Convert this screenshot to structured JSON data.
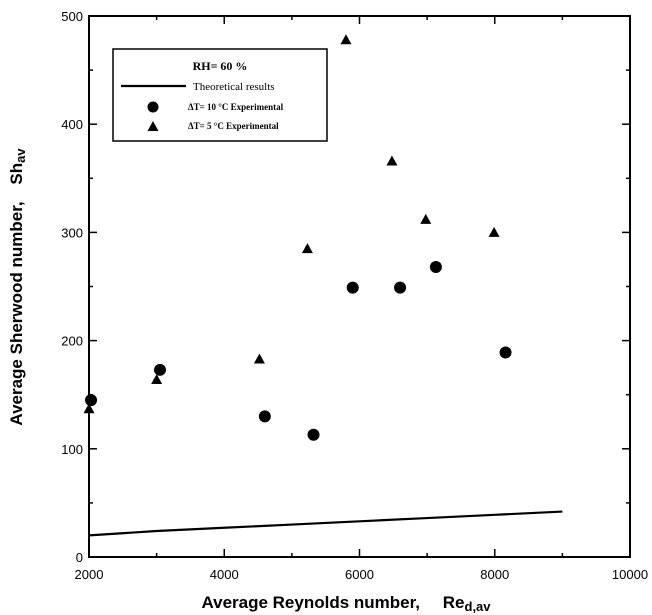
{
  "chart_data": {
    "type": "scatter",
    "xlabel": "Average Reynolds number,",
    "xlabel_symbol": "Re",
    "xlabel_sub": "d,av",
    "ylabel": "Average Sherwood number,",
    "ylabel_symbol": "Sh",
    "ylabel_sub": "av",
    "xlim": [
      2000,
      10000
    ],
    "ylim": [
      0,
      500
    ],
    "x_ticks": [
      2000,
      4000,
      6000,
      8000,
      10000
    ],
    "y_ticks": [
      0,
      100,
      200,
      300,
      400,
      500
    ],
    "grid": false,
    "legend_position": "top-left",
    "legend_title": "RH= 60 %",
    "series": [
      {
        "name": "Theoretical results",
        "kind": "line",
        "x": [
          2000,
          3000,
          4000,
          5000,
          6000,
          7000,
          8000,
          9000
        ],
        "y": [
          20,
          24,
          27,
          30,
          33,
          36,
          39,
          42
        ]
      },
      {
        "name": "ΔT= 10 °C Experimental",
        "kind": "marker",
        "marker": "circle",
        "x": [
          2030,
          3050,
          4600,
          5320,
          5900,
          6600,
          7130,
          8160
        ],
        "y": [
          145,
          173,
          130,
          113,
          249,
          249,
          268,
          189
        ]
      },
      {
        "name": "ΔT= 5 °C Experimental",
        "kind": "marker",
        "marker": "triangle",
        "x": [
          2000,
          3000,
          4520,
          5230,
          5800,
          6480,
          6980,
          7990
        ],
        "y": [
          137,
          164,
          183,
          285,
          478,
          366,
          312,
          300
        ]
      }
    ]
  }
}
